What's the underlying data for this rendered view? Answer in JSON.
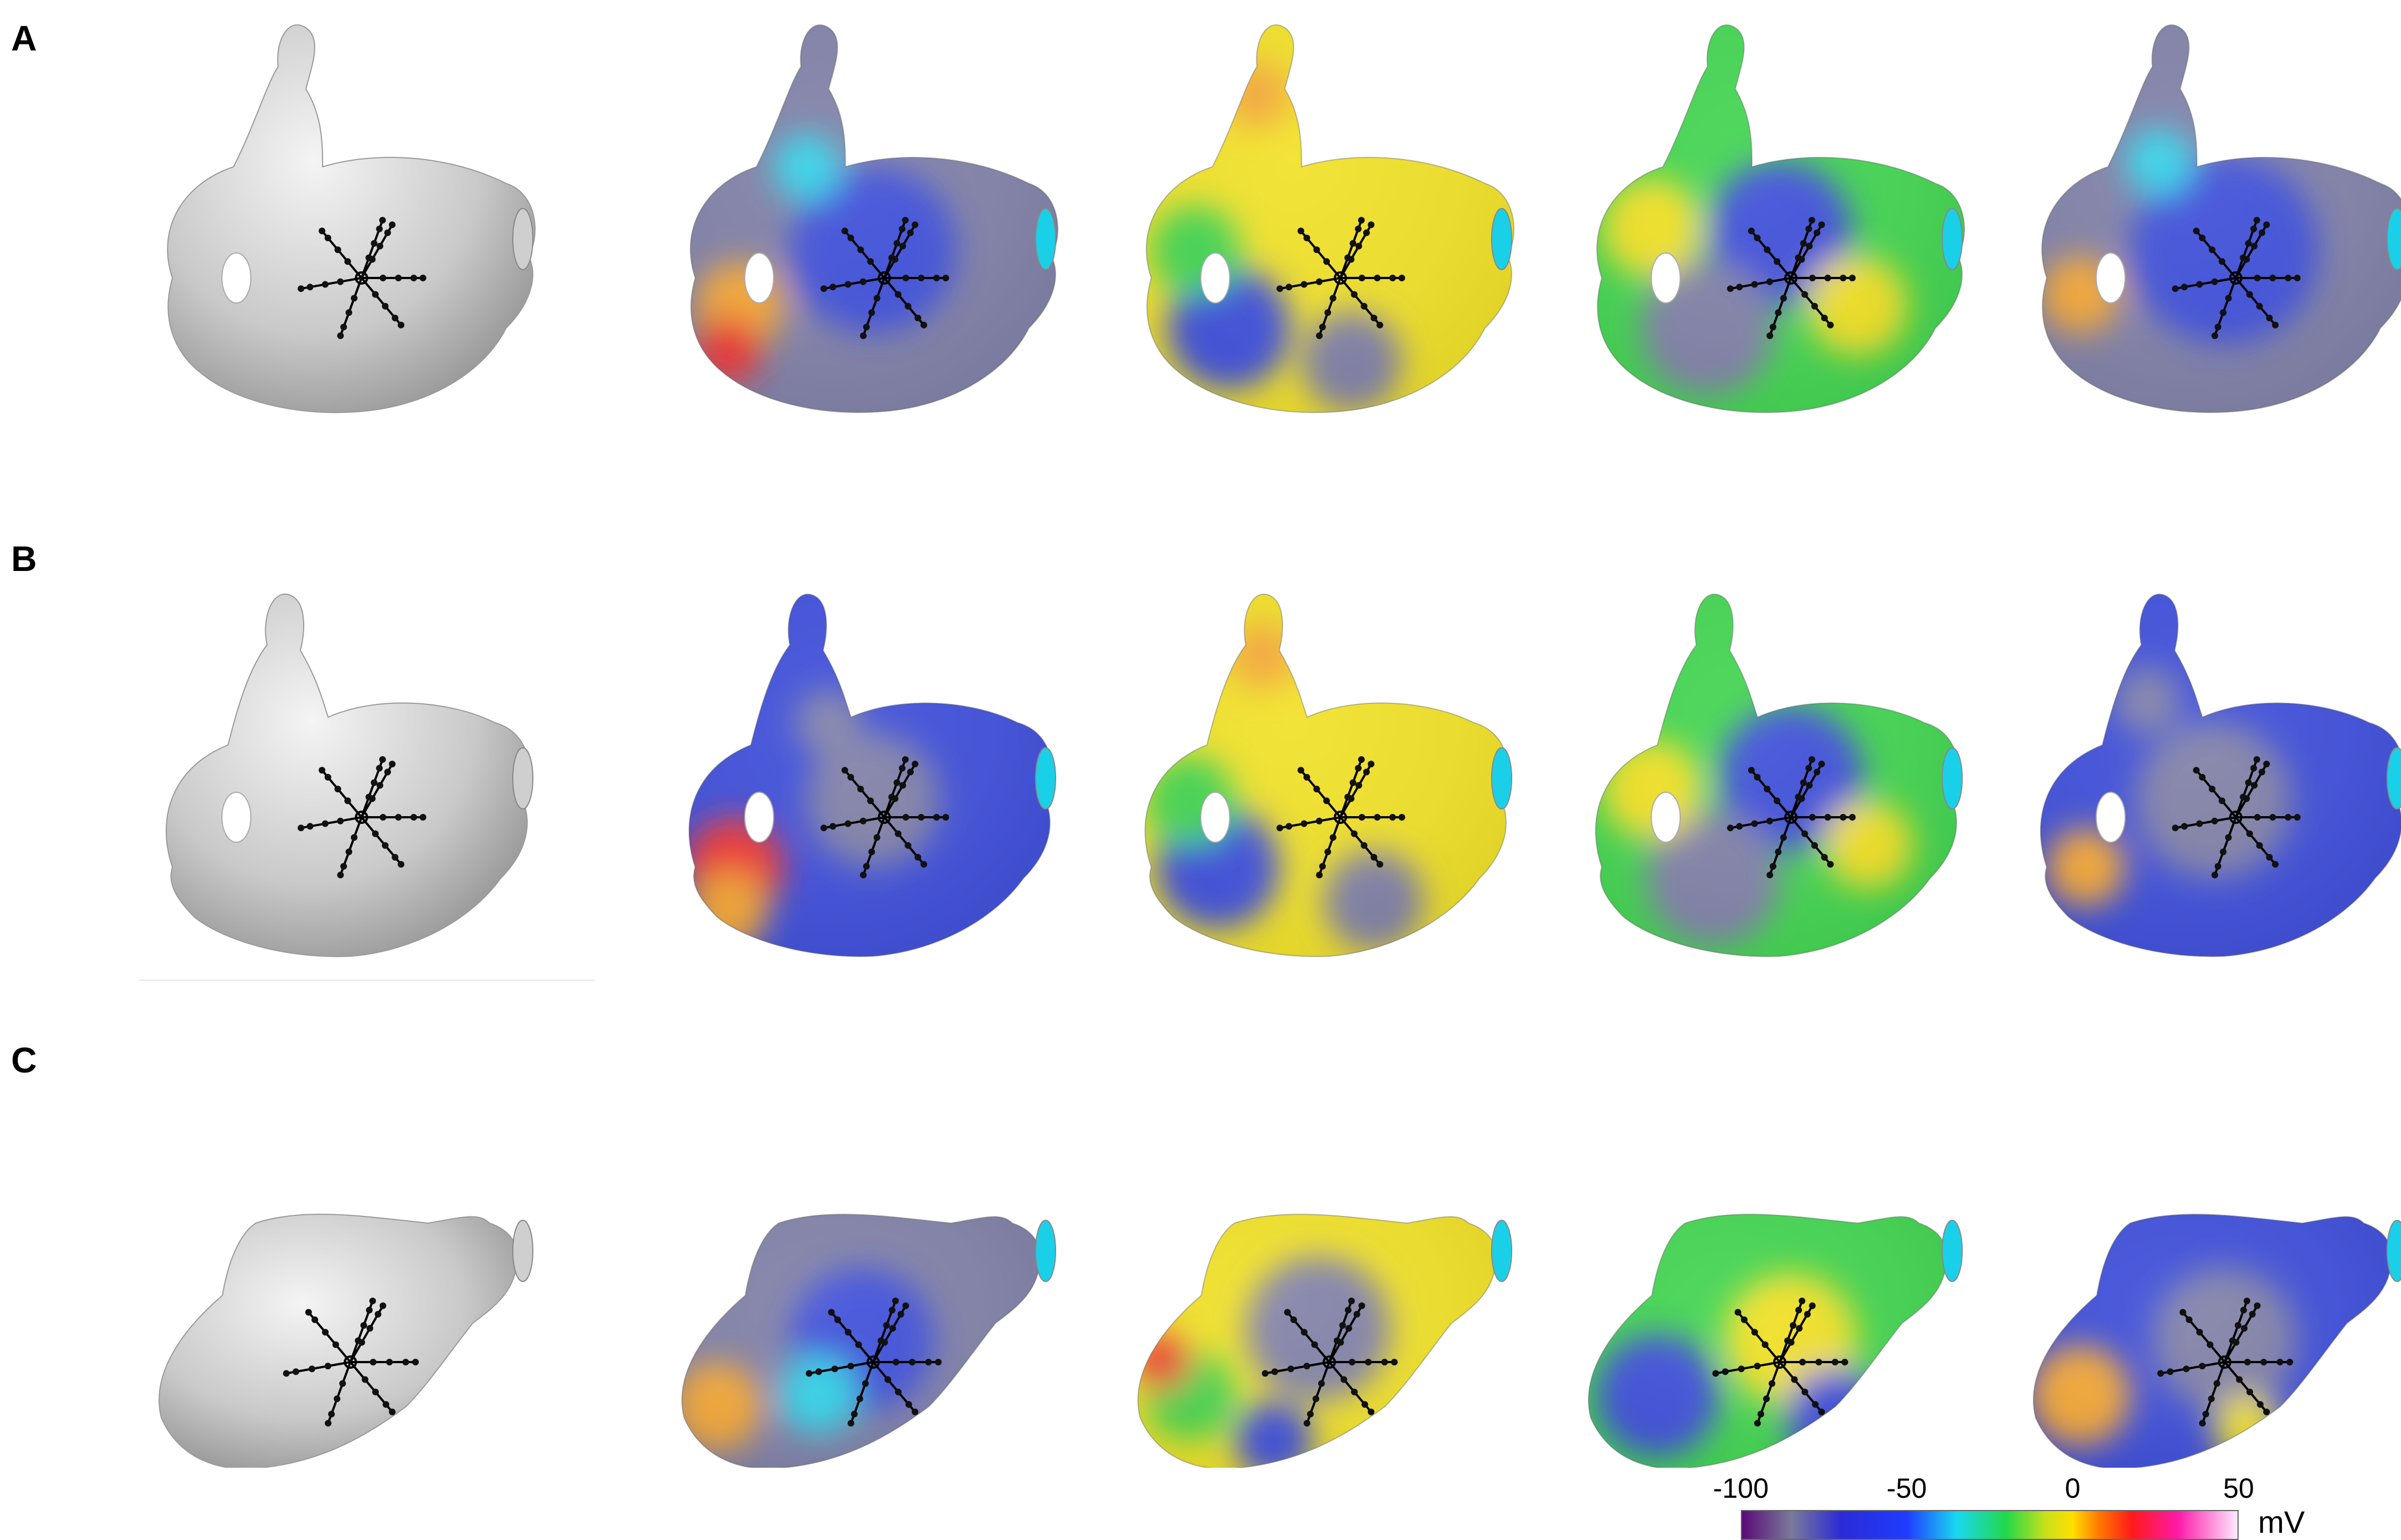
{
  "rows": [
    {
      "label": "A"
    },
    {
      "label": "B"
    },
    {
      "label": "C"
    }
  ],
  "colorbar": {
    "ticks": [
      "-100",
      "-50",
      "0",
      "50"
    ],
    "unit": "mV",
    "min": -100,
    "max": 50,
    "stops": [
      {
        "value": -100,
        "color": "#5a0a78"
      },
      {
        "value": -85,
        "color": "#7a7a9a"
      },
      {
        "value": -70,
        "color": "#2b2bd6"
      },
      {
        "value": -50,
        "color": "#1f3cff"
      },
      {
        "value": -35,
        "color": "#19d8f0"
      },
      {
        "value": -20,
        "color": "#22d84a"
      },
      {
        "value": -8,
        "color": "#c8e01a"
      },
      {
        "value": 0,
        "color": "#ffdf00"
      },
      {
        "value": 8,
        "color": "#ff7a00"
      },
      {
        "value": 18,
        "color": "#ff1a1a"
      },
      {
        "value": 32,
        "color": "#ff1aa8"
      },
      {
        "value": 50,
        "color": "#fde8ff"
      }
    ]
  },
  "icons": {
    "catheter": "spiral-catheter-icon",
    "heart": "left-atrium-model"
  }
}
